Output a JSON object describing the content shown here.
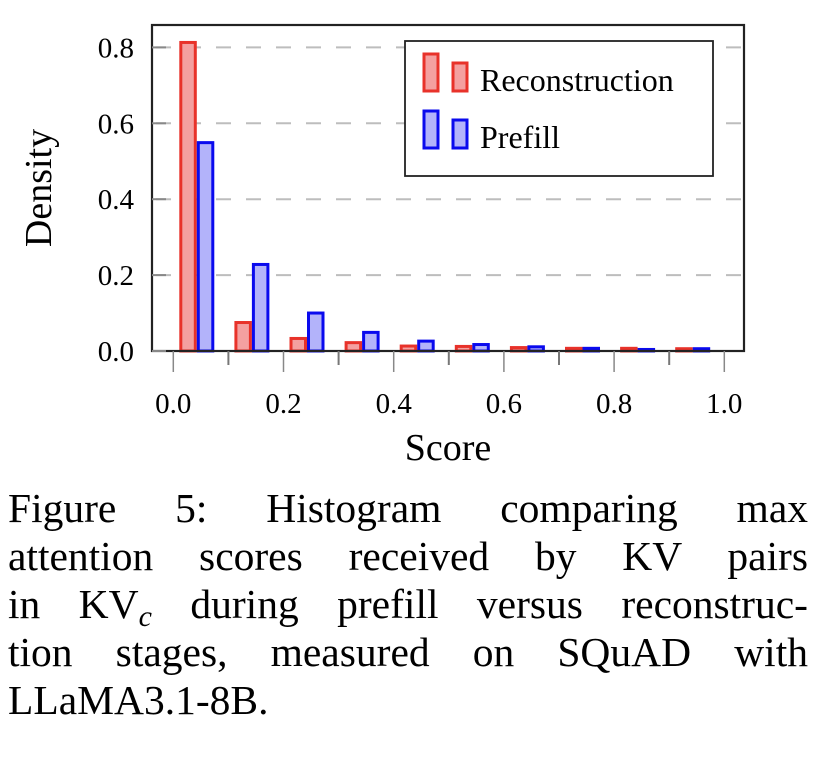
{
  "chart_data": {
    "type": "bar",
    "title": "",
    "xlabel": "Score",
    "ylabel": "Density",
    "xlim": [
      0.0,
      1.0
    ],
    "ylim": [
      0.0,
      0.82
    ],
    "xticks": [
      "0.0",
      "0.2",
      "0.4",
      "0.6",
      "0.8",
      "1.0"
    ],
    "xtick_values": [
      0.0,
      0.2,
      0.4,
      0.6,
      0.8,
      1.0
    ],
    "xminor_tick_values": [
      0.1,
      0.3,
      0.5,
      0.7,
      0.9
    ],
    "yticks": [
      "0.0",
      "0.2",
      "0.4",
      "0.6",
      "0.8"
    ],
    "ytick_values": [
      0.0,
      0.2,
      0.4,
      0.6,
      0.8
    ],
    "grid": "horizontal-dashed",
    "legend_position": "top-right",
    "bins": [
      0.0,
      0.1,
      0.2,
      0.3,
      0.4,
      0.5,
      0.6,
      0.7,
      0.8,
      0.9
    ],
    "bin_width": 0.1,
    "series": [
      {
        "name": "Reconstruction",
        "edge_color": "#e8322a",
        "fill_color": "#f4a0a0",
        "values": [
          0.817,
          0.079,
          0.037,
          0.026,
          0.017,
          0.016,
          0.013,
          0.011,
          0.011,
          0.01
        ]
      },
      {
        "name": "Prefill",
        "edge_color": "#0a0aee",
        "fill_color": "#b3b3fa",
        "values": [
          0.553,
          0.232,
          0.104,
          0.053,
          0.03,
          0.021,
          0.015,
          0.011,
          0.008,
          0.01
        ]
      }
    ]
  },
  "caption": {
    "lines": [
      "Figure 5:  Histogram comparing max",
      "attention scores received by KV pairs",
      "during prefill versus reconstruc-",
      "tion stages, measured on SQuAD with",
      "LLaMA3.1-8B."
    ],
    "line3_prefix": "in KV",
    "line3_subscript": "c"
  }
}
